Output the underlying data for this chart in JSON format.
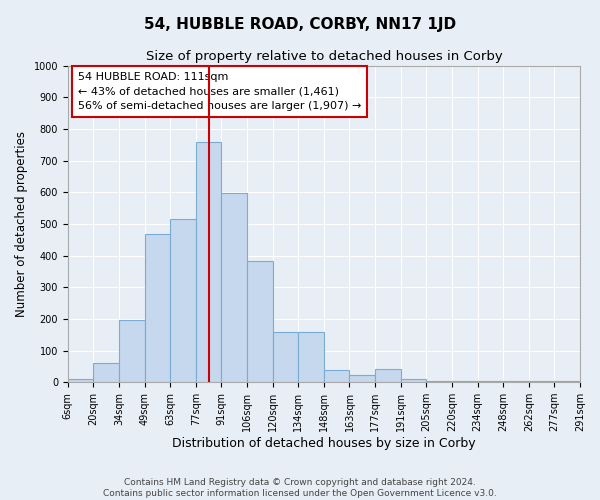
{
  "title": "54, HUBBLE ROAD, CORBY, NN17 1JD",
  "subtitle": "Size of property relative to detached houses in Corby",
  "xlabel": "Distribution of detached houses by size in Corby",
  "ylabel": "Number of detached properties",
  "bar_color": "#c5d8ee",
  "bar_edge_color": "#7aadd4",
  "background_color": "#e8eef5",
  "grid_color": "#ffffff",
  "vline_x": 5,
  "vline_color": "#cc0000",
  "bin_labels": [
    "6sqm",
    "20sqm",
    "34sqm",
    "49sqm",
    "63sqm",
    "77sqm",
    "91sqm",
    "106sqm",
    "120sqm",
    "134sqm",
    "148sqm",
    "163sqm",
    "177sqm",
    "191sqm",
    "205sqm",
    "220sqm",
    "234sqm",
    "248sqm",
    "262sqm",
    "277sqm",
    "291sqm"
  ],
  "counts": [
    10,
    62,
    197,
    467,
    517,
    758,
    597,
    383,
    158,
    158,
    38,
    22,
    42,
    9,
    5,
    5,
    5,
    5,
    5,
    5
  ],
  "ylim": [
    0,
    1000
  ],
  "yticks": [
    0,
    100,
    200,
    300,
    400,
    500,
    600,
    700,
    800,
    900,
    1000
  ],
  "annotation_text": "54 HUBBLE ROAD: 111sqm\n← 43% of detached houses are smaller (1,461)\n56% of semi-detached houses are larger (1,907) →",
  "annotation_box_color": "#ffffff",
  "annotation_border_color": "#cc0000",
  "footnote": "Contains HM Land Registry data © Crown copyright and database right 2024.\nContains public sector information licensed under the Open Government Licence v3.0.",
  "title_fontsize": 11,
  "subtitle_fontsize": 9.5,
  "xlabel_fontsize": 9,
  "ylabel_fontsize": 8.5,
  "tick_fontsize": 7,
  "annotation_fontsize": 8,
  "footnote_fontsize": 6.5
}
